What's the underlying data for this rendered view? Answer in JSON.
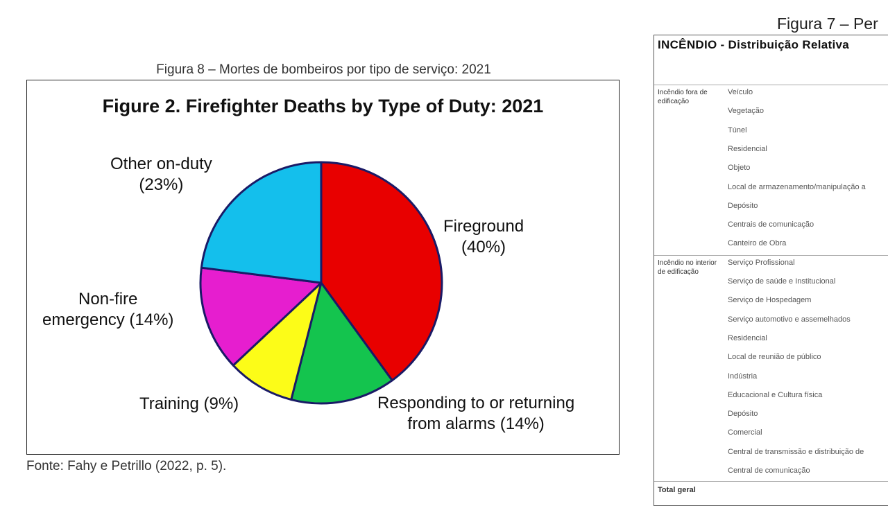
{
  "figure8": {
    "caption": "Figura 8 – Mortes de bombeiros por tipo de serviço: 2021",
    "source": "Fonte: Fahy e Petrillo (2022, p. 5)."
  },
  "chart_data": {
    "type": "pie",
    "title": "Figure 2. Firefighter Deaths by Type of Duty: 2021",
    "slices": [
      {
        "label_lines": [
          "Fireground",
          "(40%)"
        ],
        "value": 40,
        "color": "#e80000"
      },
      {
        "label_lines": [
          "Responding to or returning",
          "from alarms (14%)"
        ],
        "value": 14,
        "color": "#14c44e"
      },
      {
        "label_lines": [
          "Training (9%)"
        ],
        "value": 9,
        "color": "#fcfc18"
      },
      {
        "label_lines": [
          "Non-fire",
          "emergency (14%)"
        ],
        "value": 14,
        "color": "#e61ecf"
      },
      {
        "label_lines": [
          "Other on-duty",
          "(23%)"
        ],
        "value": 23,
        "color": "#14bfec"
      }
    ],
    "outline_color": "#1a1a66"
  },
  "figure7": {
    "caption": "Figura 7 – Per",
    "header": "INCÊNDIO - Distribuição Relativa",
    "groups": [
      {
        "label": "Incêndio fora de edificação",
        "rows": [
          "Veículo",
          "Vegetação",
          "Túnel",
          "Residencial",
          "Objeto",
          "Local de armazenamento/manipulação a",
          "Depósito",
          "Centrais de comunicação",
          "Canteiro de Obra"
        ]
      },
      {
        "label": "Incêndio no interior de edificação",
        "rows": [
          "Serviço Profissional",
          "Serviço de saúde e Institucional",
          "Serviço de Hospedagem",
          "Serviço automotivo e assemelhados",
          "Residencial",
          "Local de reunião de público",
          "Indústria",
          "Educacional e Cultura física",
          "Depósito",
          "Comercial",
          "Central de transmissão e distribuição de",
          "Central de comunicação"
        ]
      }
    ],
    "total_label": "Total geral"
  }
}
